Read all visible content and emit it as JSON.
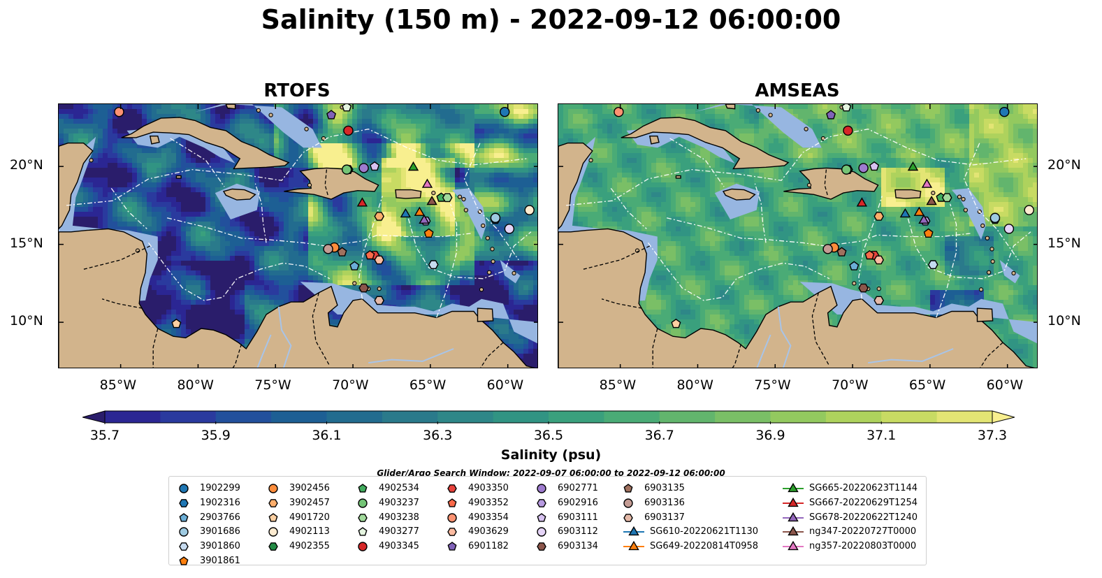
{
  "title": "Salinity (150 m) - 2022-09-12 06:00:00",
  "panels": [
    {
      "title": "RTOFS",
      "field": "rtofs"
    },
    {
      "title": "AMSEAS",
      "field": "amseas"
    }
  ],
  "map_extent": {
    "lon_min": -89,
    "lon_max": -58,
    "lat_min": 7,
    "lat_max": 24
  },
  "x_ticks": [
    {
      "lon": -85,
      "label": "85°W"
    },
    {
      "lon": -80,
      "label": "80°W"
    },
    {
      "lon": -75,
      "label": "75°W"
    },
    {
      "lon": -70,
      "label": "70°W"
    },
    {
      "lon": -65,
      "label": "65°W"
    },
    {
      "lon": -60,
      "label": "60°W"
    }
  ],
  "y_ticks": [
    {
      "lat": 20,
      "label": "20°N"
    },
    {
      "lat": 15,
      "label": "15°N"
    },
    {
      "lat": 10,
      "label": "10°N"
    }
  ],
  "colorbar": {
    "label": "Salinity (psu)",
    "min": 35.6,
    "max": 37.4,
    "step": 0.1,
    "ticks": [
      "35.7",
      "35.9",
      "36.1",
      "36.3",
      "36.5",
      "36.7",
      "36.9",
      "37.1",
      "37.3"
    ],
    "colors": [
      "#2a1d6b",
      "#2b2693",
      "#2a3a9e",
      "#22509c",
      "#1d5f94",
      "#226c8f",
      "#2a7a8b",
      "#2e8788",
      "#319483",
      "#3aa07d",
      "#4aab76",
      "#62b56d",
      "#7abf66",
      "#93c95f",
      "#aed25d",
      "#c8db63",
      "#e3e574",
      "#f8ef8f"
    ],
    "extend": "both"
  },
  "search_window": "Glider/Argo Search Window: 2022-09-07 06:00:00 to 2022-09-12 06:00:00",
  "colors": {
    "land": "#d2b48c",
    "shelf": "#97b6e1",
    "coast": "#000000",
    "eez": "#ffffff"
  },
  "observations": [
    {
      "id": "1902299",
      "lon": -60.2,
      "lat": 23.5,
      "shape": "circle",
      "color": "#1f77b4"
    },
    {
      "id": "1902316",
      "lon": -60.8,
      "lat": 16.6,
      "shape": "hexagon",
      "color": "#1f77b4"
    },
    {
      "id": "2903766",
      "lon": -69.9,
      "lat": 13.6,
      "shape": "pentagon",
      "color": "#6baed6"
    },
    {
      "id": "3901686",
      "lon": -60.8,
      "lat": 16.7,
      "shape": "circle",
      "color": "#9ecae1"
    },
    {
      "id": "3901860",
      "lon": -64.8,
      "lat": 13.7,
      "shape": "hexagon",
      "color": "#c6dbef"
    },
    {
      "id": "3901861",
      "lon": -65.1,
      "lat": 15.7,
      "shape": "pentagon",
      "color": "#fd7f0e"
    },
    {
      "id": "3902456",
      "lon": -71.2,
      "lat": 14.8,
      "shape": "circle",
      "color": "#fd8d3c"
    },
    {
      "id": "3902457",
      "lon": -68.3,
      "lat": 16.8,
      "shape": "hexagon",
      "color": "#fdae6b"
    },
    {
      "id": "4901720",
      "lon": -81.4,
      "lat": 9.9,
      "shape": "pentagon",
      "color": "#fdd0a2"
    },
    {
      "id": "4902113",
      "lon": -58.6,
      "lat": 17.2,
      "shape": "circle",
      "color": "#fdebd0"
    },
    {
      "id": "4902355",
      "lon": -70.3,
      "lat": 19.8,
      "shape": "hexagon",
      "color": "#238b45"
    },
    {
      "id": "4902534",
      "lon": -64.3,
      "lat": 18.0,
      "shape": "pentagon",
      "color": "#41ab5d"
    },
    {
      "id": "4903237",
      "lon": -70.4,
      "lat": 19.8,
      "shape": "circle",
      "color": "#74c476"
    },
    {
      "id": "4903238",
      "lon": -63.9,
      "lat": 18.0,
      "shape": "hexagon",
      "color": "#a1d99b"
    },
    {
      "id": "4903277",
      "lon": -70.4,
      "lat": 23.8,
      "shape": "pentagon",
      "color": "#e5f5e0"
    },
    {
      "id": "4903345",
      "lon": -70.3,
      "lat": 22.3,
      "shape": "circle",
      "color": "#d62728"
    },
    {
      "id": "4903350",
      "lon": -68.6,
      "lat": 14.3,
      "shape": "hexagon",
      "color": "#e8423c"
    },
    {
      "id": "4903352",
      "lon": -68.9,
      "lat": 14.3,
      "shape": "pentagon",
      "color": "#fb6a4a"
    },
    {
      "id": "4903354",
      "lon": -85.1,
      "lat": 23.5,
      "shape": "circle",
      "color": "#fc9272"
    },
    {
      "id": "4903629",
      "lon": -68.3,
      "lat": 14.0,
      "shape": "hexagon",
      "color": "#fcbba1"
    },
    {
      "id": "6901182",
      "lon": -71.4,
      "lat": 23.3,
      "shape": "pentagon",
      "color": "#8062b8"
    },
    {
      "id": "6902771",
      "lon": -69.3,
      "lat": 19.9,
      "shape": "circle",
      "color": "#9e7bce"
    },
    {
      "id": "6902916",
      "lon": -65.3,
      "lat": 16.5,
      "shape": "hexagon",
      "color": "#b79ae0"
    },
    {
      "id": "6903111",
      "lon": -68.6,
      "lat": 20.0,
      "shape": "pentagon",
      "color": "#d7c2f0"
    },
    {
      "id": "6903112",
      "lon": -59.9,
      "lat": 16.0,
      "shape": "circle",
      "color": "#e5d4f7"
    },
    {
      "id": "6903134",
      "lon": -69.3,
      "lat": 12.2,
      "shape": "hexagon",
      "color": "#8c564b"
    },
    {
      "id": "6903135",
      "lon": -70.7,
      "lat": 14.5,
      "shape": "pentagon",
      "color": "#a0715f"
    },
    {
      "id": "6903136",
      "lon": -71.6,
      "lat": 14.7,
      "shape": "circle",
      "color": "#c49c94"
    },
    {
      "id": "6903137",
      "lon": -68.3,
      "lat": 11.4,
      "shape": "hexagon",
      "color": "#e4b9a8"
    },
    {
      "id": "SG610-20220621T1130",
      "lon": -66.6,
      "lat": 17.0,
      "shape": "triangle",
      "color": "#1f77b4"
    },
    {
      "id": "SG649-20220814T0958",
      "lon": -65.7,
      "lat": 17.1,
      "shape": "triangle",
      "color": "#ff7f0e"
    },
    {
      "id": "SG665-20220623T1144",
      "lon": -66.1,
      "lat": 20.0,
      "shape": "triangle",
      "color": "#2ca02c"
    },
    {
      "id": "SG667-20220629T1254",
      "lon": -69.4,
      "lat": 17.7,
      "shape": "triangle",
      "color": "#d62728"
    },
    {
      "id": "SG678-20220622T1240",
      "lon": -65.4,
      "lat": 16.6,
      "shape": "triangle",
      "color": "#9467bd"
    },
    {
      "id": "ng347-20220727T0000",
      "lon": -64.9,
      "lat": 17.8,
      "shape": "triangle",
      "color": "#8c564b"
    },
    {
      "id": "ng357-20220803T0000",
      "lon": -65.2,
      "lat": 18.9,
      "shape": "triangle",
      "color": "#e377c2"
    }
  ]
}
